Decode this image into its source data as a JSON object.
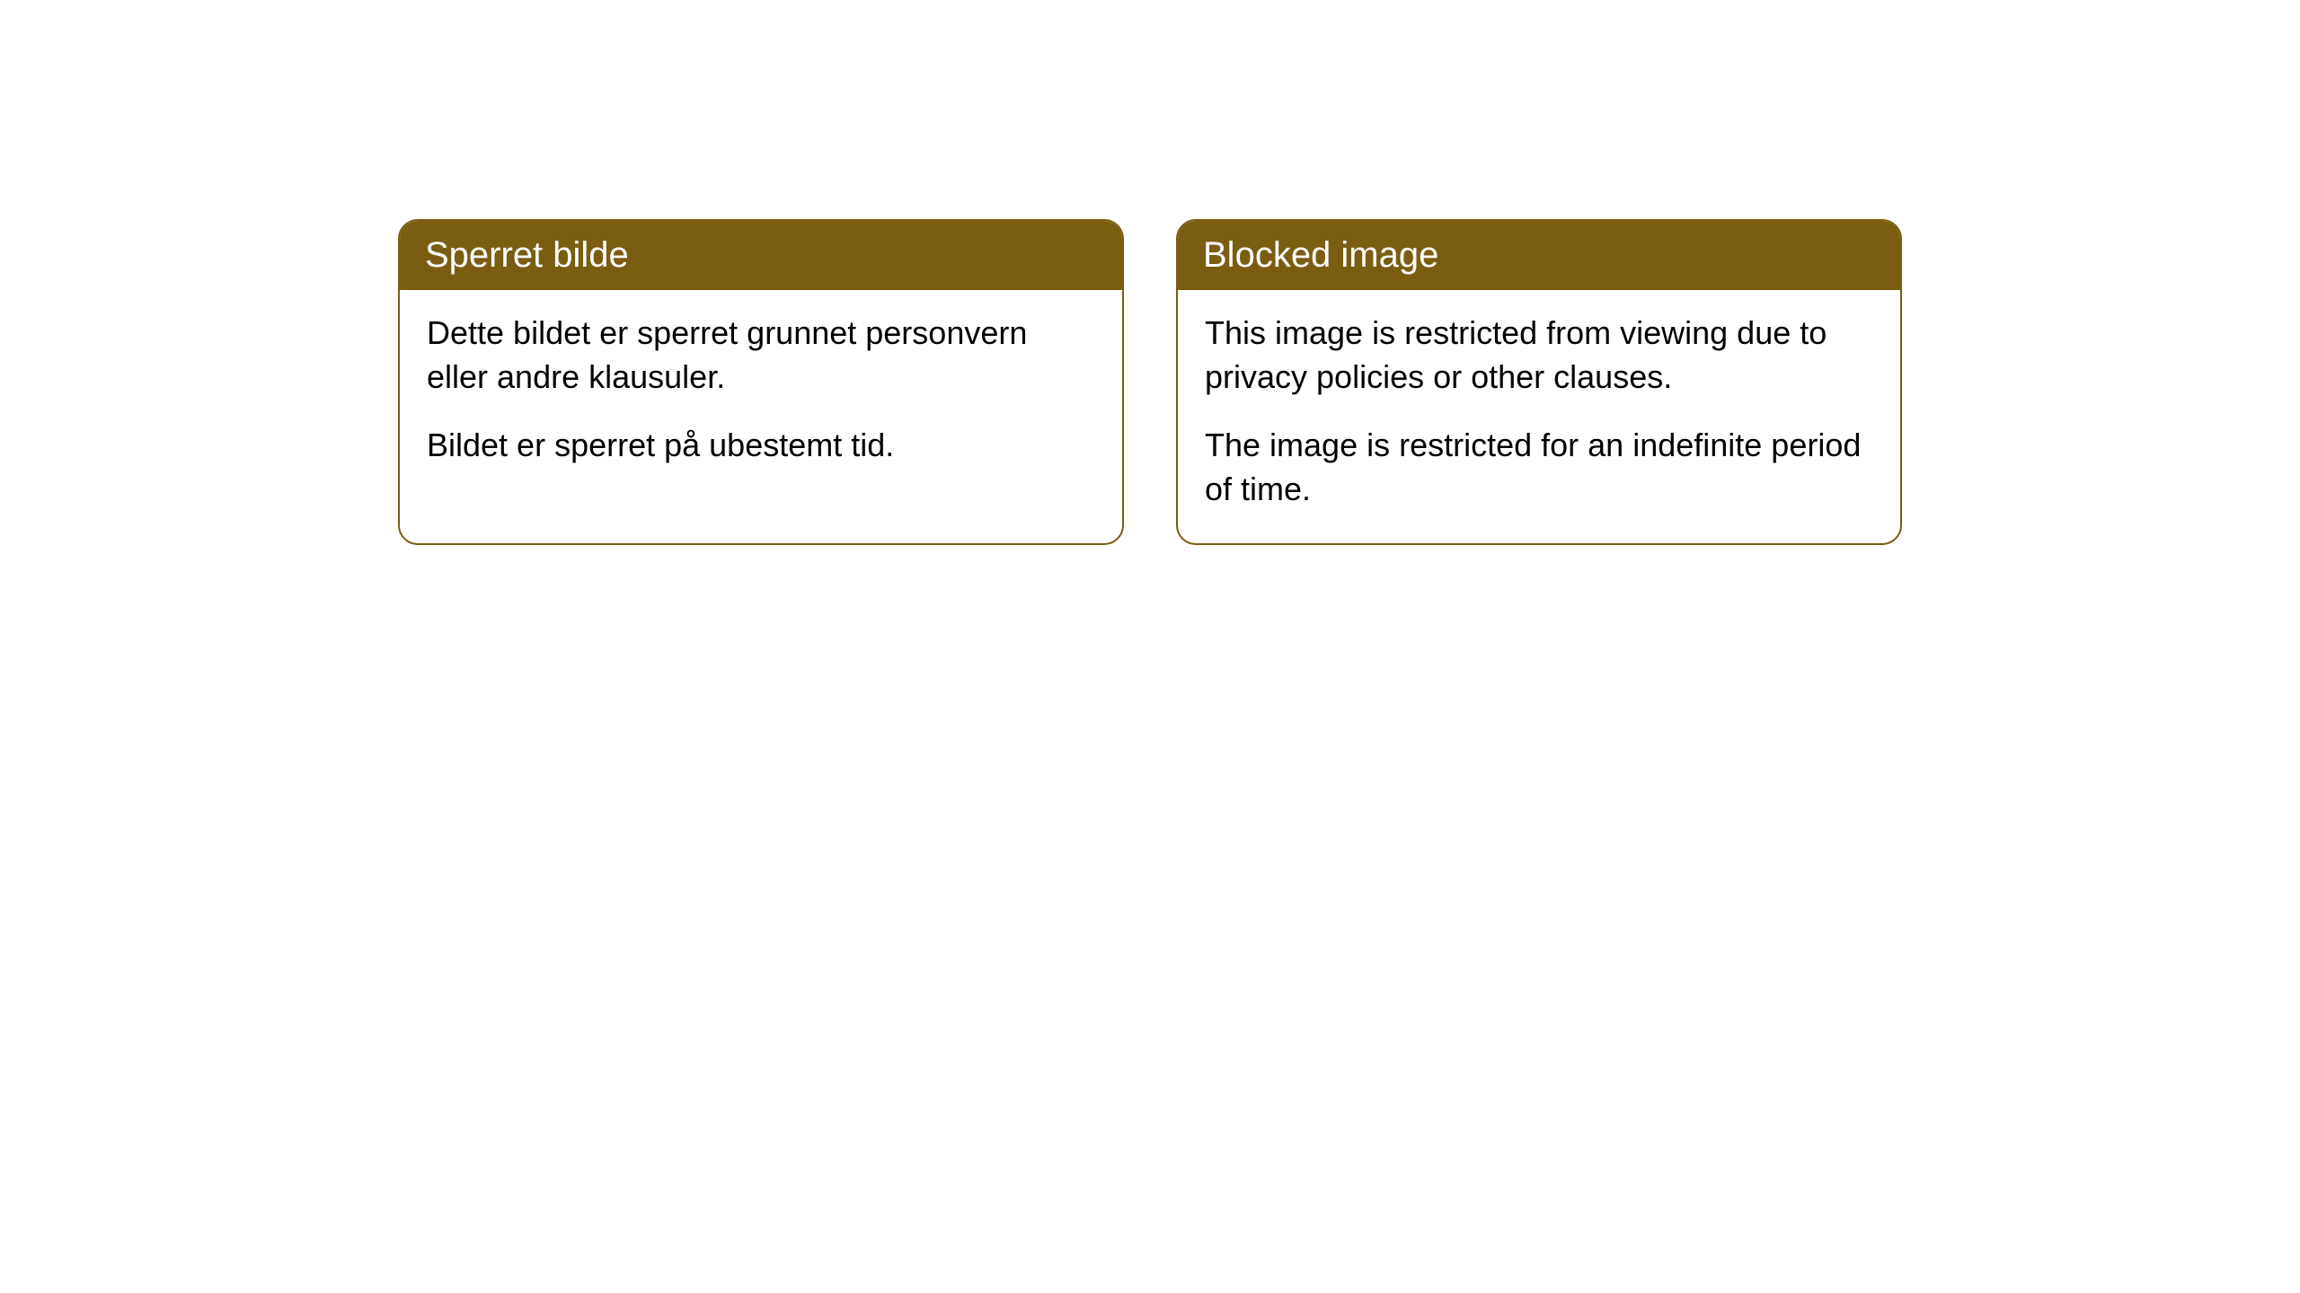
{
  "cards": [
    {
      "title": "Sperret bilde",
      "paragraph1": "Dette bildet er sperret grunnet personvern eller andre klausuler.",
      "paragraph2": "Bildet er sperret på ubestemt tid."
    },
    {
      "title": "Blocked image",
      "paragraph1": "This image is restricted from viewing due to privacy policies or other clauses.",
      "paragraph2": "The image is restricted for an indefinite period of time."
    }
  ],
  "styles": {
    "header_background": "#7a5d11",
    "header_text_color": "#ffffff",
    "border_color": "#7a5d11",
    "body_text_color": "#000000",
    "card_background": "#ffffff",
    "page_background": "#ffffff",
    "border_radius": 22,
    "header_font_size": 40,
    "body_font_size": 36
  }
}
